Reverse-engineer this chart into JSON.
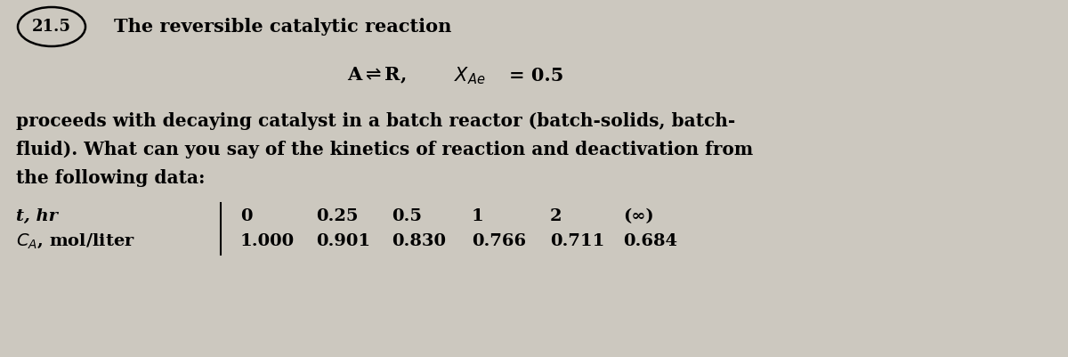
{
  "bg_color": "#ccc8bf",
  "problem_number": "21.5",
  "title": "The reversible catalytic reaction",
  "body_text_line1": "proceeds with decaying catalyst in a batch reactor (batch-solids, batch-",
  "body_text_line2": "fluid). What can you say of the kinetics of reaction and deactivation from",
  "body_text_line3": "the following data:",
  "table_row1_label": "t, hr",
  "t_values": [
    "0",
    "0.25",
    "0.5",
    "1",
    "2",
    "(∞)"
  ],
  "ca_values": [
    "1.000",
    "0.901",
    "0.830",
    "0.766",
    "0.711",
    "0.684"
  ],
  "font_size_title": 15,
  "font_size_body": 14.5,
  "font_size_table": 14,
  "font_size_reaction": 15,
  "font_size_number": 13
}
